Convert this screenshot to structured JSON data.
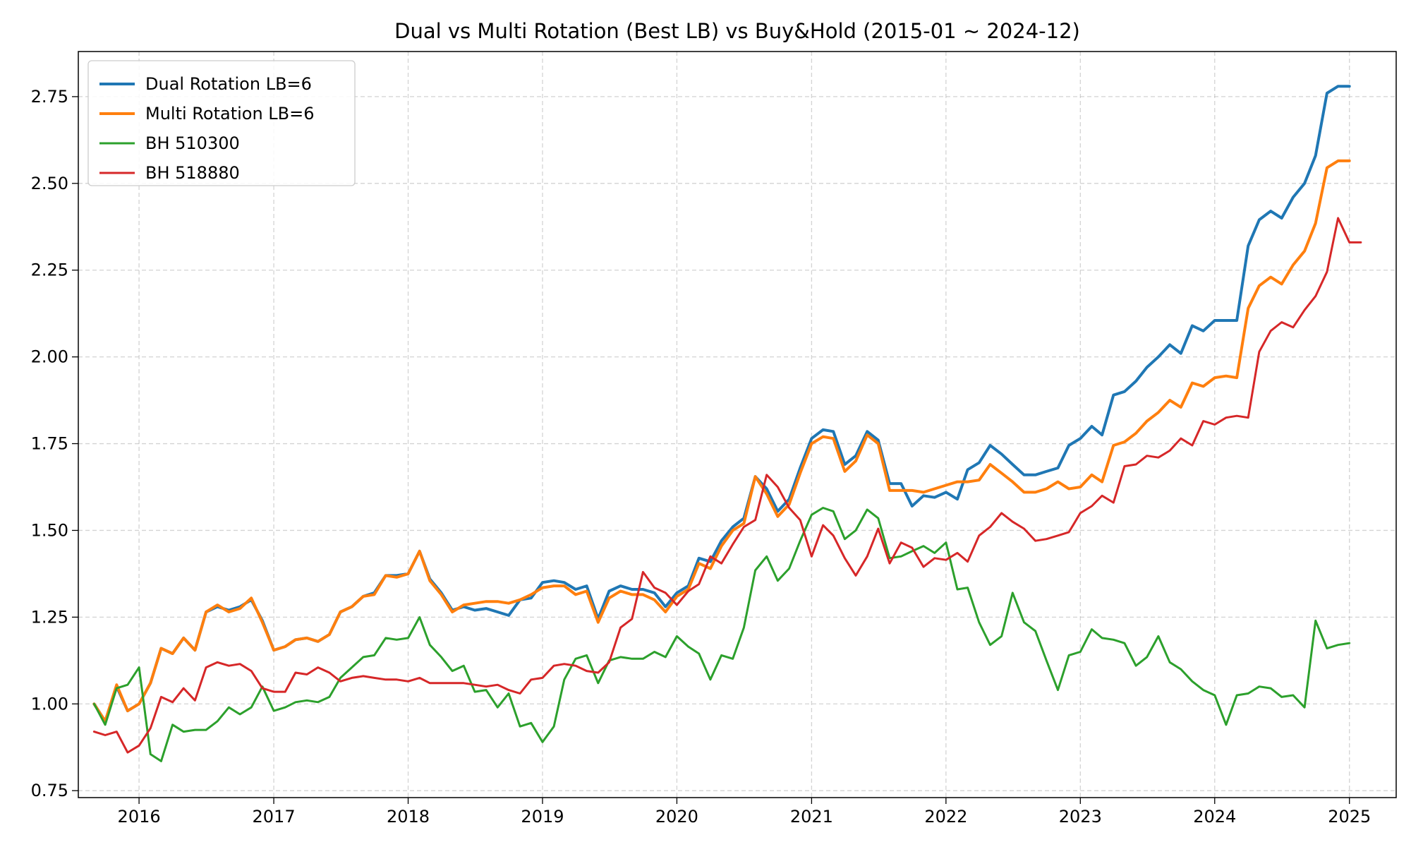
{
  "chart_data": {
    "type": "line",
    "title": "Dual vs Multi Rotation (Best LB) vs Buy&Hold (2015-01 ~ 2024-12)",
    "xlabel": "",
    "ylabel": "",
    "xlim": [
      "2015-07-20",
      "2025-05-08"
    ],
    "ylim": [
      0.73,
      2.88
    ],
    "x_ticks": [
      "2016",
      "2017",
      "2018",
      "2019",
      "2020",
      "2021",
      "2022",
      "2023",
      "2024",
      "2025"
    ],
    "y_ticks": [
      "0.75",
      "1.00",
      "1.25",
      "1.50",
      "1.75",
      "2.00",
      "2.25",
      "2.50",
      "2.75"
    ],
    "grid": true,
    "legend_position": "top-left",
    "start": "2015-09",
    "frequency": "monthly",
    "series": [
      {
        "name": "Dual Rotation LB=6",
        "color": "#1f77b4",
        "width": 4,
        "values": [
          1.0,
          0.95,
          1.05,
          0.98,
          1.0,
          1.06,
          1.16,
          1.145,
          1.19,
          1.155,
          1.265,
          1.28,
          1.27,
          1.28,
          1.3,
          1.24,
          1.155,
          1.165,
          1.185,
          1.19,
          1.18,
          1.2,
          1.265,
          1.28,
          1.31,
          1.32,
          1.37,
          1.37,
          1.375,
          1.44,
          1.36,
          1.32,
          1.27,
          1.28,
          1.27,
          1.275,
          1.265,
          1.255,
          1.3,
          1.305,
          1.35,
          1.355,
          1.35,
          1.33,
          1.34,
          1.245,
          1.325,
          1.34,
          1.33,
          1.33,
          1.32,
          1.28,
          1.32,
          1.34,
          1.42,
          1.41,
          1.47,
          1.51,
          1.535,
          1.655,
          1.62,
          1.555,
          1.59,
          1.68,
          1.765,
          1.79,
          1.785,
          1.69,
          1.715,
          1.785,
          1.76,
          1.635,
          1.635,
          1.57,
          1.6,
          1.595,
          1.61,
          1.59,
          1.675,
          1.695,
          1.745,
          1.72,
          1.69,
          1.66,
          1.66,
          1.67,
          1.68,
          1.745,
          1.765,
          1.8,
          1.775,
          1.89,
          1.9,
          1.93,
          1.97,
          2.0,
          2.035,
          2.01,
          2.09,
          2.075,
          2.105,
          2.105,
          2.105,
          2.32,
          2.395,
          2.42,
          2.4,
          2.46,
          2.5,
          2.58,
          2.76,
          2.78,
          2.78
        ]
      },
      {
        "name": "Multi Rotation LB=6",
        "color": "#ff7f0e",
        "width": 4,
        "values": [
          1.0,
          0.95,
          1.055,
          0.98,
          1.0,
          1.06,
          1.16,
          1.145,
          1.19,
          1.155,
          1.265,
          1.285,
          1.265,
          1.275,
          1.305,
          1.235,
          1.155,
          1.165,
          1.185,
          1.19,
          1.18,
          1.2,
          1.265,
          1.28,
          1.31,
          1.315,
          1.37,
          1.365,
          1.375,
          1.44,
          1.355,
          1.315,
          1.265,
          1.285,
          1.29,
          1.295,
          1.295,
          1.29,
          1.3,
          1.315,
          1.335,
          1.34,
          1.34,
          1.315,
          1.325,
          1.235,
          1.305,
          1.325,
          1.315,
          1.315,
          1.3,
          1.265,
          1.31,
          1.33,
          1.405,
          1.39,
          1.455,
          1.5,
          1.52,
          1.655,
          1.605,
          1.54,
          1.575,
          1.665,
          1.75,
          1.77,
          1.765,
          1.67,
          1.7,
          1.775,
          1.75,
          1.615,
          1.615,
          1.615,
          1.61,
          1.62,
          1.63,
          1.64,
          1.64,
          1.645,
          1.69,
          1.665,
          1.64,
          1.61,
          1.61,
          1.62,
          1.64,
          1.62,
          1.625,
          1.66,
          1.64,
          1.745,
          1.755,
          1.78,
          1.815,
          1.84,
          1.875,
          1.855,
          1.925,
          1.915,
          1.94,
          1.945,
          1.94,
          2.14,
          2.205,
          2.23,
          2.21,
          2.265,
          2.305,
          2.385,
          2.545,
          2.565,
          2.565
        ]
      },
      {
        "name": "BH 510300",
        "color": "#2ca02c",
        "width": 3,
        "values": [
          1.0,
          0.94,
          1.045,
          1.055,
          1.105,
          0.855,
          0.835,
          0.94,
          0.92,
          0.925,
          0.925,
          0.95,
          0.99,
          0.97,
          0.99,
          1.05,
          0.98,
          0.99,
          1.005,
          1.01,
          1.005,
          1.02,
          1.075,
          1.105,
          1.135,
          1.14,
          1.19,
          1.185,
          1.19,
          1.25,
          1.17,
          1.135,
          1.095,
          1.11,
          1.035,
          1.04,
          0.99,
          1.03,
          0.935,
          0.945,
          0.89,
          0.935,
          1.07,
          1.13,
          1.14,
          1.06,
          1.125,
          1.135,
          1.13,
          1.13,
          1.15,
          1.135,
          1.195,
          1.165,
          1.145,
          1.07,
          1.14,
          1.13,
          1.22,
          1.385,
          1.425,
          1.355,
          1.39,
          1.47,
          1.545,
          1.565,
          1.555,
          1.475,
          1.5,
          1.56,
          1.535,
          1.42,
          1.425,
          1.44,
          1.455,
          1.435,
          1.465,
          1.33,
          1.335,
          1.235,
          1.17,
          1.195,
          1.32,
          1.235,
          1.21,
          1.125,
          1.04,
          1.14,
          1.15,
          1.215,
          1.19,
          1.185,
          1.175,
          1.11,
          1.135,
          1.195,
          1.12,
          1.1,
          1.065,
          1.04,
          1.025,
          0.94,
          1.025,
          1.03,
          1.05,
          1.045,
          1.02,
          1.025,
          0.99,
          1.24,
          1.16,
          1.17,
          1.175
        ]
      },
      {
        "name": "BH 518880",
        "color": "#d62728",
        "width": 3,
        "values": [
          0.92,
          0.91,
          0.92,
          0.86,
          0.88,
          0.93,
          1.02,
          1.005,
          1.045,
          1.01,
          1.105,
          1.12,
          1.11,
          1.115,
          1.095,
          1.045,
          1.035,
          1.035,
          1.09,
          1.085,
          1.105,
          1.09,
          1.065,
          1.075,
          1.08,
          1.075,
          1.07,
          1.07,
          1.065,
          1.075,
          1.06,
          1.06,
          1.06,
          1.06,
          1.055,
          1.05,
          1.055,
          1.04,
          1.03,
          1.07,
          1.075,
          1.11,
          1.115,
          1.11,
          1.095,
          1.09,
          1.12,
          1.22,
          1.245,
          1.38,
          1.335,
          1.32,
          1.285,
          1.325,
          1.345,
          1.425,
          1.405,
          1.46,
          1.51,
          1.53,
          1.66,
          1.625,
          1.565,
          1.53,
          1.425,
          1.515,
          1.485,
          1.42,
          1.37,
          1.425,
          1.505,
          1.405,
          1.465,
          1.45,
          1.395,
          1.42,
          1.415,
          1.435,
          1.41,
          1.485,
          1.51,
          1.55,
          1.525,
          1.505,
          1.47,
          1.475,
          1.485,
          1.495,
          1.55,
          1.57,
          1.6,
          1.58,
          1.685,
          1.69,
          1.715,
          1.71,
          1.73,
          1.765,
          1.745,
          1.815,
          1.805,
          1.825,
          1.83,
          1.825,
          2.015,
          2.075,
          2.1,
          2.085,
          2.135,
          2.175,
          2.245,
          2.4,
          2.33,
          2.33
        ]
      }
    ]
  }
}
